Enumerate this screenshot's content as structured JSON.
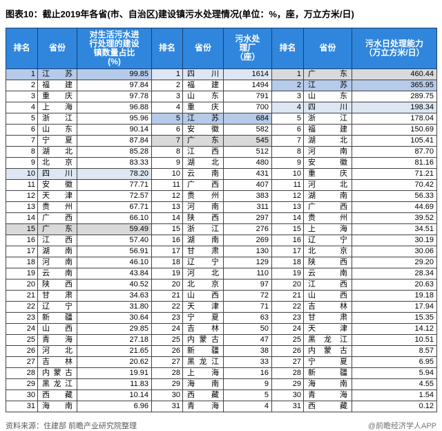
{
  "title": "图表10：截止2019年各省(市、自治区)建设镇污水处理情况(单位：%，座，万立方米/日)",
  "header": {
    "cells": [
      "排名",
      "省份",
      "对生活污水进\n行处理的建设\n镇数量占比\n(%)",
      "排名",
      "省份",
      "污水处\n理厂\n（座）",
      "排名",
      "省份",
      "污水日处理能力\n（万立方米/日）"
    ]
  },
  "chart_data": [
    {
      "type": "table",
      "title": "对生活污水进行处理的建设镇数量占比(%)",
      "columns": [
        "排名",
        "省份",
        "对生活污水进行处理的建设镇数量占比(%)"
      ],
      "rows": [
        [
          1,
          "江苏",
          "99.85"
        ],
        [
          2,
          "福建",
          "97.84"
        ],
        [
          3,
          "重庆",
          "97.78"
        ],
        [
          4,
          "上海",
          "96.88"
        ],
        [
          5,
          "浙江",
          "95.96"
        ],
        [
          6,
          "山东",
          "90.14"
        ],
        [
          7,
          "宁夏",
          "87.84"
        ],
        [
          8,
          "湖北",
          "85.28"
        ],
        [
          9,
          "北京",
          "83.33"
        ],
        [
          10,
          "四川",
          "78.20"
        ],
        [
          11,
          "安徽",
          "77.71"
        ],
        [
          12,
          "天津",
          "72.57"
        ],
        [
          13,
          "贵州",
          "67.71"
        ],
        [
          14,
          "广西",
          "66.10"
        ],
        [
          15,
          "广东",
          "59.49"
        ],
        [
          16,
          "江西",
          "57.40"
        ],
        [
          17,
          "湖南",
          "56.91"
        ],
        [
          18,
          "河南",
          "46.10"
        ],
        [
          19,
          "云南",
          "43.84"
        ],
        [
          20,
          "陕西",
          "40.52"
        ],
        [
          21,
          "甘肃",
          "34.63"
        ],
        [
          22,
          "辽宁",
          "31.80"
        ],
        [
          23,
          "新疆",
          "30.64"
        ],
        [
          24,
          "山西",
          "29.85"
        ],
        [
          25,
          "青海",
          "27.18"
        ],
        [
          26,
          "河北",
          "21.65"
        ],
        [
          27,
          "吉林",
          "20.62"
        ],
        [
          28,
          "内蒙古",
          "19.91"
        ],
        [
          29,
          "黑龙江",
          "11.83"
        ],
        [
          30,
          "西藏",
          "10.14"
        ],
        [
          31,
          "海南",
          "6.96"
        ]
      ],
      "highlights": {
        "1": "js",
        "10": "sc",
        "15": "gd"
      }
    },
    {
      "type": "table",
      "title": "污水处理厂(座)",
      "columns": [
        "排名",
        "省份",
        "污水处理厂（座）"
      ],
      "rows": [
        [
          1,
          "四川",
          "1614"
        ],
        [
          2,
          "福建",
          "1494"
        ],
        [
          3,
          "山东",
          "791"
        ],
        [
          4,
          "重庆",
          "700"
        ],
        [
          5,
          "江苏",
          "684"
        ],
        [
          6,
          "安徽",
          "582"
        ],
        [
          7,
          "广东",
          "545"
        ],
        [
          8,
          "江西",
          "512"
        ],
        [
          9,
          "湖北",
          "480"
        ],
        [
          10,
          "云南",
          "431"
        ],
        [
          11,
          "广西",
          "407"
        ],
        [
          12,
          "贵州",
          "383"
        ],
        [
          13,
          "河南",
          "311"
        ],
        [
          14,
          "陕西",
          "297"
        ],
        [
          15,
          "浙江",
          "276"
        ],
        [
          16,
          "湖南",
          "269"
        ],
        [
          17,
          "甘肃",
          "130"
        ],
        [
          18,
          "辽宁",
          "129"
        ],
        [
          19,
          "河北",
          "110"
        ],
        [
          20,
          "北京",
          "97"
        ],
        [
          21,
          "山西",
          "72"
        ],
        [
          22,
          "天津",
          "71"
        ],
        [
          23,
          "宁夏",
          "63"
        ],
        [
          24,
          "吉林",
          "50"
        ],
        [
          25,
          "内蒙古",
          "47"
        ],
        [
          26,
          "新疆",
          "38"
        ],
        [
          27,
          "黑龙江",
          "33"
        ],
        [
          28,
          "上海",
          "16"
        ],
        [
          29,
          "海南",
          "9"
        ],
        [
          30,
          "西藏",
          "5"
        ],
        [
          31,
          "青海",
          "4"
        ]
      ],
      "highlights": {
        "1": "sc",
        "5": "js",
        "7": "gd"
      }
    },
    {
      "type": "table",
      "title": "污水日处理能力(万立方米/日)",
      "columns": [
        "排名",
        "省份",
        "污水日处理能力（万立方米/日）"
      ],
      "rows": [
        [
          1,
          "广东",
          "460.44"
        ],
        [
          2,
          "江苏",
          "365.95"
        ],
        [
          3,
          "山东",
          "289.75"
        ],
        [
          4,
          "四川",
          "198.34"
        ],
        [
          5,
          "浙江",
          "178.04"
        ],
        [
          6,
          "福建",
          "150.69"
        ],
        [
          7,
          "湖北",
          "105.41"
        ],
        [
          8,
          "河南",
          "87.70"
        ],
        [
          9,
          "安徽",
          "81.16"
        ],
        [
          10,
          "重庆",
          "71.21"
        ],
        [
          11,
          "河北",
          "70.42"
        ],
        [
          12,
          "湖南",
          "56.33"
        ],
        [
          13,
          "广西",
          "44.69"
        ],
        [
          14,
          "贵州",
          "39.52"
        ],
        [
          15,
          "上海",
          "34.51"
        ],
        [
          16,
          "辽宁",
          "30.19"
        ],
        [
          17,
          "北京",
          "30.06"
        ],
        [
          18,
          "陕西",
          "29.20"
        ],
        [
          19,
          "云南",
          "28.34"
        ],
        [
          20,
          "江西",
          "20.63"
        ],
        [
          21,
          "山西",
          "19.18"
        ],
        [
          22,
          "吉林",
          "17.94"
        ],
        [
          23,
          "甘肃",
          "15.35"
        ],
        [
          24,
          "天津",
          "14.12"
        ],
        [
          25,
          "黑龙江",
          "10.51"
        ],
        [
          26,
          "内蒙古",
          "8.57"
        ],
        [
          27,
          "宁夏",
          "6.95"
        ],
        [
          28,
          "新疆",
          "5.94"
        ],
        [
          29,
          "海南",
          "4.55"
        ],
        [
          30,
          "青海",
          "1.54"
        ],
        [
          31,
          "西藏",
          "0.12"
        ]
      ],
      "highlights": {
        "1": "gd",
        "2": "js",
        "4": "sc"
      }
    }
  ],
  "footer": {
    "source": "资料来源：住建部 前瞻产业研究院整理",
    "credit": "@前瞻经济学人APP"
  },
  "watermark": {
    "text": "前瞻产业研究院"
  },
  "colors": {
    "header_bg": "#2f86dc",
    "highlight_jiangsu": "#b6cbe9",
    "highlight_sichuan": "#dde6f2",
    "highlight_guangdong": "#d9d9d9",
    "border": "#404040"
  }
}
